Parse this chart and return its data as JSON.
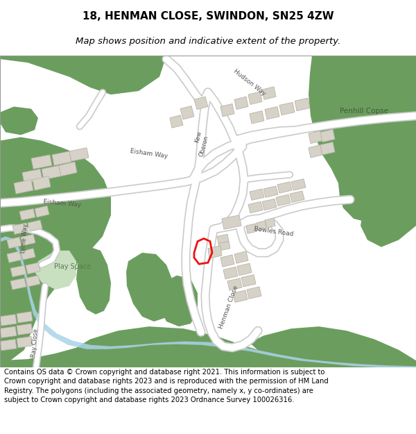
{
  "title_line1": "18, HENMAN CLOSE, SWINDON, SN25 4ZW",
  "title_line2": "Map shows position and indicative extent of the property.",
  "footer": "Contains OS data © Crown copyright and database right 2021. This information is subject to Crown copyright and database rights 2023 and is reproduced with the permission of HM Land Registry. The polygons (including the associated geometry, namely x, y co-ordinates) are subject to Crown copyright and database rights 2023 Ordnance Survey 100026316.",
  "map_bg": "#f0ede8",
  "building_color": "#d6d2c8",
  "building_edge": "#b8b4aa",
  "green_color": "#6b9e5e",
  "green_light": "#c8dfc0",
  "road_color": "#ffffff",
  "road_edge": "#cccccc",
  "water_color": "#aad4e8",
  "plot_color": "#ee1111",
  "title_fontsize": 11,
  "subtitle_fontsize": 9.5,
  "footer_fontsize": 7.2
}
